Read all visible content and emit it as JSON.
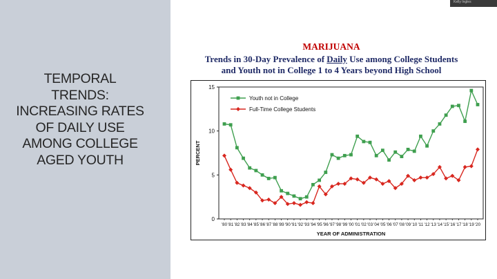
{
  "slide": {
    "title_lines": [
      "TEMPORAL",
      "TRENDS:",
      "INCREASING RATES",
      "OF DAILY USE",
      "AMONG COLLEGE",
      "AGED YOUTH"
    ]
  },
  "webcam": {
    "name": "Kelly Ingles"
  },
  "chart_heading": {
    "top": "MARIJUANA",
    "line1_before": "Trends in 30-Day Prevalence of ",
    "line1_underlined": "Daily",
    "line1_after": " Use among College Students",
    "line2": "and Youth not in College 1 to 4 Years beyond High School"
  },
  "colors": {
    "green": "#3f9f4f",
    "red": "#d8271f",
    "panel": "#c9cfd8"
  },
  "chart_data": {
    "type": "line",
    "title": "MARIJUANA",
    "xlabel": "YEAR OF ADMINISTRATION",
    "ylabel": "PERCENT",
    "ylim": [
      0,
      15
    ],
    "yticks": [
      0,
      5,
      10,
      15
    ],
    "legend": "top-left",
    "categories": [
      "'80",
      "'81",
      "'82",
      "'83",
      "'84",
      "'85",
      "'86",
      "'87",
      "'88",
      "'89",
      "'90",
      "'91",
      "'92",
      "'93",
      "'94",
      "'95",
      "'96",
      "'97",
      "'98",
      "'99",
      "'00",
      "'01",
      "'02",
      "'03",
      "'04",
      "'05",
      "'06",
      "'07",
      "'08",
      "'09",
      "'10",
      "'11",
      "'12",
      "'13",
      "'14",
      "'15",
      "'16",
      "'17",
      "'18",
      "'19",
      "'20"
    ],
    "series": [
      {
        "name": "Youth not in College",
        "color": "#3f9f4f",
        "marker": "square",
        "values": [
          10.8,
          10.7,
          8.1,
          6.9,
          5.8,
          5.5,
          5.0,
          4.6,
          4.7,
          3.2,
          2.9,
          2.6,
          2.3,
          2.5,
          3.9,
          4.4,
          5.3,
          7.3,
          6.9,
          7.2,
          7.3,
          9.4,
          8.8,
          8.7,
          7.2,
          7.8,
          6.7,
          7.6,
          7.1,
          7.9,
          7.7,
          9.4,
          8.3,
          10.0,
          10.8,
          11.8,
          12.8,
          12.9,
          11.1,
          14.6,
          13.0
        ]
      },
      {
        "name": "Full-Time College Students",
        "color": "#d8271f",
        "marker": "diamond",
        "values": [
          7.2,
          5.6,
          4.1,
          3.8,
          3.5,
          3.0,
          2.1,
          2.2,
          1.8,
          2.5,
          1.7,
          1.8,
          1.6,
          1.9,
          1.8,
          3.7,
          2.8,
          3.7,
          4.0,
          4.0,
          4.6,
          4.5,
          4.1,
          4.7,
          4.5,
          4.0,
          4.3,
          3.5,
          4.0,
          4.9,
          4.4,
          4.7,
          4.7,
          5.1,
          5.9,
          4.6,
          4.9,
          4.4,
          5.9,
          6.0,
          7.9
        ]
      }
    ]
  }
}
